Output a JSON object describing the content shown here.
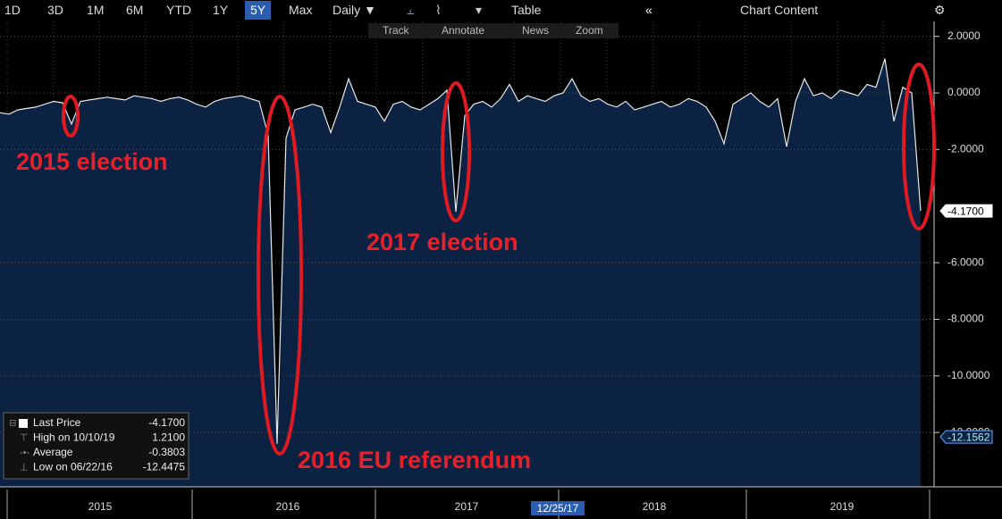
{
  "toolbar": {
    "ranges": [
      "1D",
      "3D",
      "1M",
      "6M",
      "YTD",
      "1Y",
      "5Y",
      "Max"
    ],
    "frequency": "Daily ▼",
    "table": "Table",
    "chart_content": "Chart Content",
    "tools": [
      "Track",
      "Annotate",
      "News",
      "Zoom"
    ]
  },
  "chart_data": {
    "type": "line",
    "categories": [
      null,
      null,
      null,
      null,
      null,
      null,
      null,
      null,
      null,
      null,
      null,
      "2015",
      null,
      null,
      null,
      null,
      null,
      null,
      null,
      null,
      null,
      null,
      null,
      null,
      null,
      null,
      null,
      null,
      null,
      null,
      null,
      null,
      "2016",
      null,
      null,
      null,
      null,
      null,
      null,
      null,
      null,
      null,
      null,
      null,
      null,
      null,
      null,
      null,
      null,
      null,
      null,
      null,
      "2017",
      null,
      null,
      null,
      null,
      null,
      null,
      null,
      null,
      null,
      null,
      null,
      null,
      null,
      null,
      null,
      null,
      null,
      null,
      null,
      null,
      "2018",
      null,
      null,
      null,
      null,
      null,
      null,
      null,
      null,
      null,
      null,
      null,
      null,
      null,
      null,
      null,
      null,
      null,
      null,
      null,
      null,
      "2019",
      null,
      null,
      null,
      null,
      null,
      null,
      null,
      null,
      null
    ],
    "series": [
      {
        "name": "Last Price",
        "color": "#e8e8e8",
        "values": [
          -0.7,
          -0.75,
          -0.6,
          -0.55,
          -0.5,
          -0.4,
          -0.3,
          -0.35,
          -1.1,
          -0.3,
          -0.25,
          -0.2,
          -0.15,
          -0.2,
          -0.25,
          -0.1,
          -0.15,
          -0.2,
          -0.3,
          -0.2,
          -0.15,
          -0.25,
          -0.4,
          -0.5,
          -0.3,
          -0.2,
          -0.15,
          -0.1,
          -0.2,
          -0.3,
          -1.5,
          -12.4,
          -1.6,
          -0.6,
          -0.5,
          -0.4,
          -0.5,
          -1.4,
          -0.5,
          0.5,
          -0.3,
          -0.4,
          -0.5,
          -1.0,
          -0.4,
          -0.3,
          -0.5,
          -0.6,
          -0.4,
          -0.2,
          0.1,
          -4.2,
          -0.8,
          -0.4,
          -0.3,
          -0.5,
          -0.2,
          0.3,
          -0.3,
          -0.1,
          -0.2,
          -0.3,
          -0.1,
          0.0,
          0.5,
          -0.1,
          -0.3,
          -0.2,
          -0.4,
          -0.5,
          -0.3,
          -0.6,
          -0.5,
          -0.4,
          -0.3,
          -0.5,
          -0.4,
          -0.2,
          -0.3,
          -0.5,
          -1.0,
          -1.8,
          -0.4,
          -0.2,
          0.0,
          -0.3,
          -0.5,
          -0.2,
          -1.9,
          -0.3,
          0.5,
          -0.1,
          0.0,
          -0.2,
          0.1,
          0.0,
          -0.1,
          0.3,
          0.2,
          1.21,
          -1.0,
          0.2,
          0.0,
          -4.17
        ]
      }
    ],
    "ylim": [
      -13.7,
      2.4
    ],
    "yticks": [
      {
        "value": 2,
        "label": "2.0000"
      },
      {
        "value": 0,
        "label": "0.0000"
      },
      {
        "value": -2,
        "label": "-2.0000"
      },
      {
        "value": -6,
        "label": "-6.0000"
      },
      {
        "value": -8,
        "label": "-8.0000"
      },
      {
        "value": -10,
        "label": "-10.0000"
      },
      {
        "value": -12,
        "label": "-12.0000"
      }
    ],
    "grid": true,
    "value_tags": [
      {
        "value": -4.17,
        "label": "-4.1700"
      },
      {
        "value": -12.1562,
        "label": "-12.1562"
      }
    ],
    "crosshair_label": "12/25/17",
    "annotations": [
      "2015 election",
      "2016 EU referendum",
      "2017 election"
    ],
    "legend": [
      {
        "label": "Last Price",
        "value": -4.17,
        "value_label": "-4.1700"
      },
      {
        "label": "High on 10/10/19",
        "value": 1.21,
        "value_label": "1.2100"
      },
      {
        "label": "Average",
        "value": -0.3803,
        "value_label": "-0.3803"
      },
      {
        "label": "Low on 06/22/16",
        "value": -12.4475,
        "value_label": "-12.4475"
      }
    ]
  }
}
